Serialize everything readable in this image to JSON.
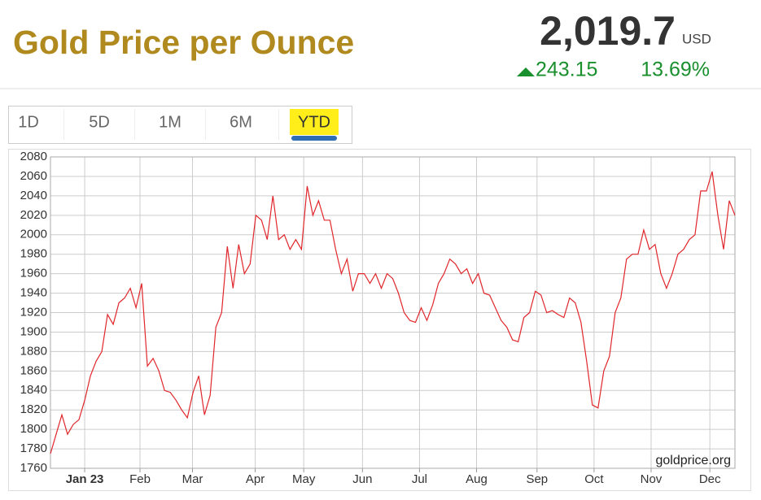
{
  "header": {
    "title": "Gold Price per Ounce",
    "price": "2,019.7",
    "currency": "USD",
    "change": "243.15",
    "change_pct": "13.69%"
  },
  "tabs": {
    "items": [
      "1D",
      "5D",
      "1M",
      "6M",
      "YTD"
    ],
    "active": 4
  },
  "chart_data": {
    "type": "line",
    "color": "#e0262b",
    "grid": true,
    "source": "goldprice.org",
    "values": [
      1775,
      1795,
      1815,
      1795,
      1805,
      1810,
      1830,
      1855,
      1870,
      1880,
      1918,
      1908,
      1930,
      1935,
      1945,
      1925,
      1950,
      1865,
      1873,
      1860,
      1840,
      1838,
      1830,
      1820,
      1812,
      1838,
      1855,
      1815,
      1835,
      1905,
      1920,
      1988,
      1945,
      1990,
      1960,
      1970,
      2020,
      2015,
      1995,
      2040,
      1995,
      2000,
      1985,
      1995,
      1985,
      2050,
      2020,
      2035,
      2015,
      2015,
      1985,
      1960,
      1975,
      1942,
      1960,
      1960,
      1950,
      1960,
      1945,
      1960,
      1955,
      1940,
      1920,
      1912,
      1910,
      1925,
      1912,
      1928,
      1950,
      1960,
      1975,
      1970,
      1960,
      1965,
      1950,
      1960,
      1940,
      1938,
      1925,
      1912,
      1905,
      1892,
      1890,
      1915,
      1920,
      1942,
      1938,
      1920,
      1922,
      1918,
      1915,
      1935,
      1930,
      1910,
      1870,
      1825,
      1822,
      1860,
      1875,
      1920,
      1935,
      1975,
      1980,
      1980,
      2005,
      1985,
      1990,
      1960,
      1945,
      1960,
      1980,
      1985,
      1995,
      2000,
      2045,
      2045,
      2065,
      2020,
      1985,
      2035,
      2020
    ],
    "xlim": [
      0,
      120
    ],
    "xticks": [
      {
        "value": 6,
        "label": "Jan 23"
      },
      {
        "value": 15.7,
        "label": "Feb"
      },
      {
        "value": 24.9,
        "label": "Mar"
      },
      {
        "value": 35.9,
        "label": "Apr"
      },
      {
        "value": 44.4,
        "label": "May"
      },
      {
        "value": 54.7,
        "label": "Jun"
      },
      {
        "value": 64.7,
        "label": "Jul"
      },
      {
        "value": 74.7,
        "label": "Aug"
      },
      {
        "value": 85.3,
        "label": "Sep"
      },
      {
        "value": 95.3,
        "label": "Oct"
      },
      {
        "value": 105.3,
        "label": "Nov"
      },
      {
        "value": 115.6,
        "label": "Dec"
      }
    ],
    "ylim": [
      1760,
      2080
    ],
    "yticks": [
      1760,
      1780,
      1800,
      1820,
      1840,
      1860,
      1880,
      1900,
      1920,
      1940,
      1960,
      1980,
      2000,
      2020,
      2040,
      2060,
      2080
    ]
  }
}
